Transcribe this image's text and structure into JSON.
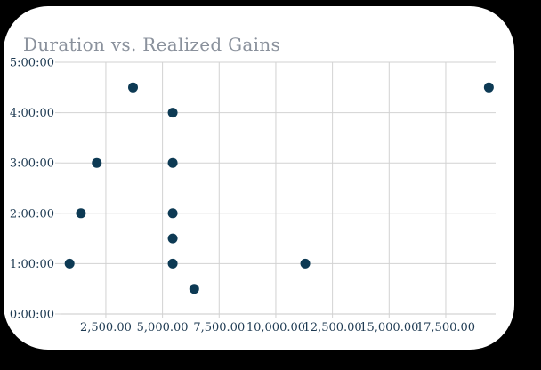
{
  "page": {
    "background_color": "#000000"
  },
  "card": {
    "background_color": "#ffffff"
  },
  "chart_data": {
    "type": "scatter",
    "title": "Duration vs. Realized Gains",
    "xlabel": "",
    "ylabel": "",
    "legend_position": "none",
    "grid": true,
    "xlim": [
      500,
      19700
    ],
    "ylim_hours": [
      0,
      5
    ],
    "x_ticks": [
      {
        "value": 2500,
        "label": "2,500.00"
      },
      {
        "value": 5000,
        "label": "5,000.00"
      },
      {
        "value": 7500,
        "label": "7,500.00"
      },
      {
        "value": 10000,
        "label": "10,000.00"
      },
      {
        "value": 12500,
        "label": "12,500.00"
      },
      {
        "value": 15000,
        "label": "15,000.00"
      },
      {
        "value": 17500,
        "label": "17,500.00"
      }
    ],
    "y_ticks": [
      {
        "hours": 5,
        "label": "5:00:00"
      },
      {
        "hours": 4,
        "label": "4:00:00"
      },
      {
        "hours": 3,
        "label": "3:00:00"
      },
      {
        "hours": 2,
        "label": "2:00:00"
      },
      {
        "hours": 1,
        "label": "1:00:00"
      },
      {
        "hours": 0,
        "label": "0:00:00"
      }
    ],
    "points": [
      {
        "realized_gain": 3700,
        "duration": "4:30:00",
        "duration_hours": 4.5
      },
      {
        "realized_gain": 19400,
        "duration": "4:30:00",
        "duration_hours": 4.5
      },
      {
        "realized_gain": 5450,
        "duration": "4:00:00",
        "duration_hours": 4.0
      },
      {
        "realized_gain": 2100,
        "duration": "3:00:00",
        "duration_hours": 3.0
      },
      {
        "realized_gain": 5450,
        "duration": "3:00:00",
        "duration_hours": 3.0
      },
      {
        "realized_gain": 1400,
        "duration": "2:00:00",
        "duration_hours": 2.0
      },
      {
        "realized_gain": 5450,
        "duration": "2:00:00",
        "duration_hours": 2.0
      },
      {
        "realized_gain": 5450,
        "duration": "1:30:00",
        "duration_hours": 1.5
      },
      {
        "realized_gain": 900,
        "duration": "1:00:00",
        "duration_hours": 1.0
      },
      {
        "realized_gain": 5450,
        "duration": "1:00:00",
        "duration_hours": 1.0
      },
      {
        "realized_gain": 11300,
        "duration": "1:00:00",
        "duration_hours": 1.0
      },
      {
        "realized_gain": 6400,
        "duration": "0:30:00",
        "duration_hours": 0.5
      }
    ],
    "colors": {
      "point": "#0d3a54",
      "grid": "#d2d2d2",
      "axis_line": "#c9c9c9",
      "tick_label": "#1e3a52",
      "title": "#8a919c"
    }
  }
}
